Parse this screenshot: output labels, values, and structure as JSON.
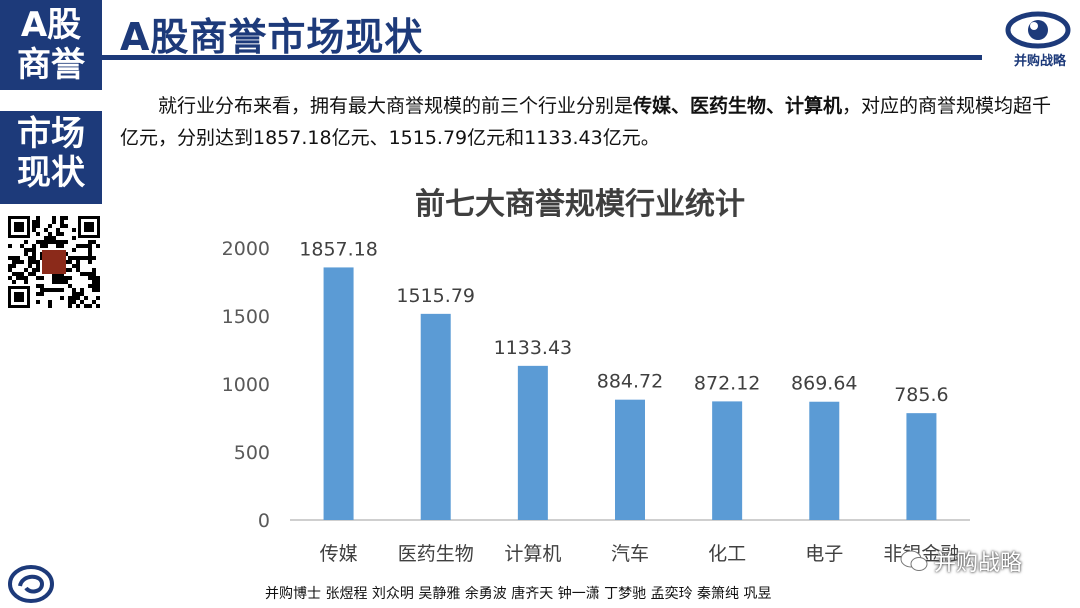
{
  "sidebar": {
    "block1": [
      "A股",
      "商誉"
    ],
    "block2": [
      "市场",
      "现状"
    ]
  },
  "header": {
    "title": "A股商誉市场现状",
    "logo_text": "并购战略"
  },
  "paragraph": {
    "part1": "就行业分布来看，拥有最大商誉规模的前三个行业分别是",
    "bold": "传媒、医药生物、计算机",
    "part2": "，对应的商誉规模均超千亿元，分别达到1857.18亿元、1515.79亿元和1133.43亿元。"
  },
  "footer": {
    "authors": "并购博士 张煜程 刘众明 吴静雅 余勇波 唐齐天 钟一潇 丁梦驰 孟奕玲 秦箫纯 巩昱",
    "watermark": "并购战略"
  },
  "colors": {
    "brand": "#1d3a7a",
    "bar": "#5b9bd5"
  },
  "chart_data": {
    "type": "bar",
    "title": "前七大商誉规模行业统计",
    "categories": [
      "传媒",
      "医药生物",
      "计算机",
      "汽车",
      "化工",
      "电子",
      "非银金融"
    ],
    "values": [
      1857.18,
      1515.79,
      1133.43,
      884.72,
      872.12,
      869.64,
      785.6
    ],
    "value_labels": [
      "1857.18",
      "1515.79",
      "1133.43",
      "884.72",
      "872.12",
      "869.64",
      "785.6"
    ],
    "yticks": [
      "0",
      "500",
      "1000",
      "1500",
      "2000"
    ],
    "ylim": [
      0,
      2000
    ],
    "grid": false,
    "legend": "none"
  }
}
